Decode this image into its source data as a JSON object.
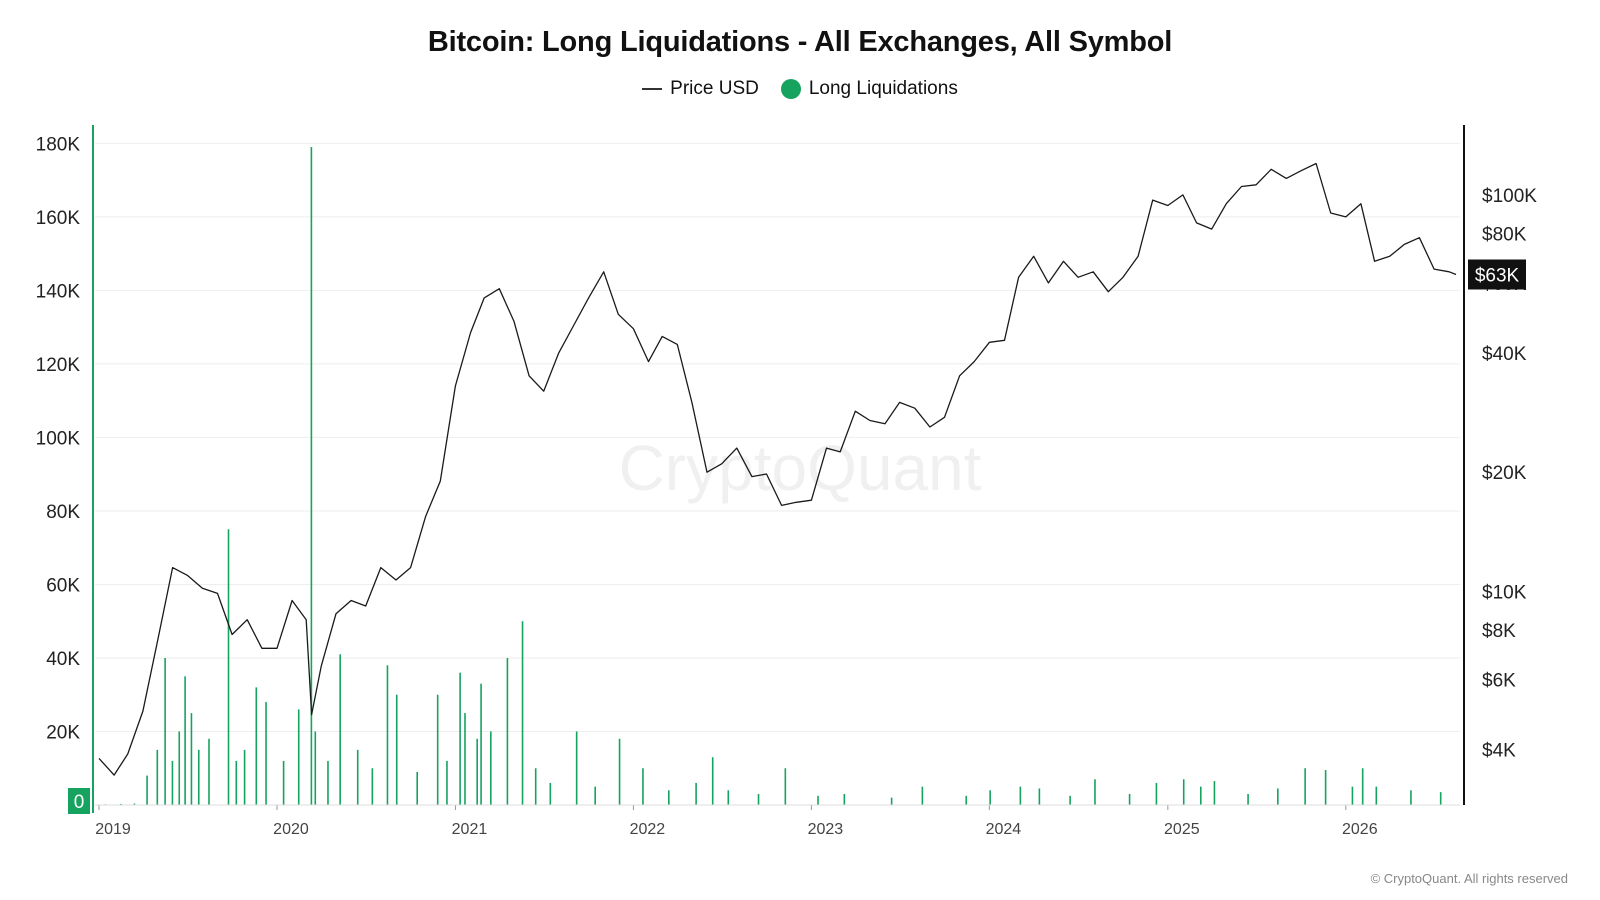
{
  "chart_data": {
    "type": "line",
    "title": "Bitcoin: Long Liquidations - All Exchanges, All Symbol",
    "watermark": "CryptoQuant",
    "copyright": "© CryptoQuant. All rights reserved",
    "legend": {
      "placement": "top-center",
      "items": [
        {
          "label": "Price USD",
          "marker": "line",
          "color": "#333333"
        },
        {
          "label": "Long Liquidations",
          "marker": "dot",
          "color": "#16A35F"
        }
      ]
    },
    "x_axis": {
      "ticks": [
        "2019",
        "2020",
        "2021",
        "2022",
        "2023",
        "2024",
        "2025",
        "2026"
      ],
      "range": [
        "2019-01-01",
        "2026-08-15"
      ]
    },
    "left_axis": {
      "range": [
        0,
        185000
      ],
      "ticks": [
        {
          "value": 0,
          "label": "0"
        },
        {
          "value": 20000,
          "label": "20K"
        },
        {
          "value": 40000,
          "label": "40K"
        },
        {
          "value": 60000,
          "label": "60K"
        },
        {
          "value": 80000,
          "label": "80K"
        },
        {
          "value": 100000,
          "label": "100K"
        },
        {
          "value": 120000,
          "label": "120K"
        },
        {
          "value": 140000,
          "label": "140K"
        },
        {
          "value": 160000,
          "label": "160K"
        },
        {
          "value": 180000,
          "label": "180K"
        }
      ]
    },
    "right_axis": {
      "scale": "log",
      "range": [
        2900,
        150000
      ],
      "ticks": [
        {
          "value": 4000,
          "label": "$4K"
        },
        {
          "value": 6000,
          "label": "$6K"
        },
        {
          "value": 8000,
          "label": "$8K"
        },
        {
          "value": 10000,
          "label": "$10K"
        },
        {
          "value": 20000,
          "label": "$20K"
        },
        {
          "value": 40000,
          "label": "$40K"
        },
        {
          "value": 60000,
          "label": "$60K"
        },
        {
          "value": 80000,
          "label": "$80K"
        },
        {
          "value": 100000,
          "label": "$100K"
        }
      ],
      "current_value": 63000,
      "current_label": "$63K"
    },
    "series": [
      {
        "name": "Price USD",
        "type": "line",
        "axis": "right",
        "color": "#1a1a1a",
        "points": [
          [
            "2019-01-01",
            3800
          ],
          [
            "2019-02-01",
            3450
          ],
          [
            "2019-03-01",
            3900
          ],
          [
            "2019-04-01",
            5000
          ],
          [
            "2019-05-01",
            7500
          ],
          [
            "2019-06-01",
            11500
          ],
          [
            "2019-07-01",
            11000
          ],
          [
            "2019-08-01",
            10200
          ],
          [
            "2019-09-01",
            9900
          ],
          [
            "2019-10-01",
            7800
          ],
          [
            "2019-11-01",
            8500
          ],
          [
            "2019-12-01",
            7200
          ],
          [
            "2020-01-01",
            7200
          ],
          [
            "2020-02-01",
            9500
          ],
          [
            "2020-03-01",
            8500
          ],
          [
            "2020-03-12",
            4900
          ],
          [
            "2020-04-01",
            6500
          ],
          [
            "2020-05-01",
            8800
          ],
          [
            "2020-06-01",
            9500
          ],
          [
            "2020-07-01",
            9200
          ],
          [
            "2020-08-01",
            11500
          ],
          [
            "2020-09-01",
            10700
          ],
          [
            "2020-10-01",
            11500
          ],
          [
            "2020-11-01",
            15500
          ],
          [
            "2020-12-01",
            19000
          ],
          [
            "2021-01-01",
            33000
          ],
          [
            "2021-02-01",
            45000
          ],
          [
            "2021-03-01",
            55000
          ],
          [
            "2021-04-01",
            58000
          ],
          [
            "2021-05-01",
            48000
          ],
          [
            "2021-06-01",
            35000
          ],
          [
            "2021-07-01",
            32000
          ],
          [
            "2021-08-01",
            40000
          ],
          [
            "2021-09-01",
            47000
          ],
          [
            "2021-10-01",
            55000
          ],
          [
            "2021-11-01",
            64000
          ],
          [
            "2021-12-01",
            50000
          ],
          [
            "2022-01-01",
            46000
          ],
          [
            "2022-02-01",
            38000
          ],
          [
            "2022-03-01",
            44000
          ],
          [
            "2022-04-01",
            42000
          ],
          [
            "2022-05-01",
            30000
          ],
          [
            "2022-06-01",
            20000
          ],
          [
            "2022-07-01",
            21000
          ],
          [
            "2022-08-01",
            23000
          ],
          [
            "2022-09-01",
            19500
          ],
          [
            "2022-10-01",
            19800
          ],
          [
            "2022-11-01",
            16500
          ],
          [
            "2022-12-01",
            16800
          ],
          [
            "2023-01-01",
            17000
          ],
          [
            "2023-02-01",
            23000
          ],
          [
            "2023-03-01",
            22500
          ],
          [
            "2023-04-01",
            28500
          ],
          [
            "2023-05-01",
            27000
          ],
          [
            "2023-06-01",
            26500
          ],
          [
            "2023-07-01",
            30000
          ],
          [
            "2023-08-01",
            29000
          ],
          [
            "2023-09-01",
            26000
          ],
          [
            "2023-10-01",
            27500
          ],
          [
            "2023-11-01",
            35000
          ],
          [
            "2023-12-01",
            38000
          ],
          [
            "2024-01-01",
            42500
          ],
          [
            "2024-02-01",
            43000
          ],
          [
            "2024-03-01",
            62000
          ],
          [
            "2024-04-01",
            70000
          ],
          [
            "2024-05-01",
            60000
          ],
          [
            "2024-06-01",
            68000
          ],
          [
            "2024-07-01",
            62000
          ],
          [
            "2024-08-01",
            64000
          ],
          [
            "2024-09-01",
            57000
          ],
          [
            "2024-10-01",
            62000
          ],
          [
            "2024-11-01",
            70000
          ],
          [
            "2024-12-01",
            97000
          ],
          [
            "2025-01-01",
            94000
          ],
          [
            "2025-02-01",
            100000
          ],
          [
            "2025-03-01",
            85000
          ],
          [
            "2025-04-01",
            82000
          ],
          [
            "2025-05-01",
            95000
          ],
          [
            "2025-06-01",
            105000
          ],
          [
            "2025-07-01",
            106000
          ],
          [
            "2025-08-01",
            116000
          ],
          [
            "2025-09-01",
            110000
          ],
          [
            "2025-10-01",
            115000
          ],
          [
            "2025-11-01",
            120000
          ],
          [
            "2025-12-01",
            90000
          ],
          [
            "2026-01-01",
            88000
          ],
          [
            "2026-02-01",
            95000
          ],
          [
            "2026-03-01",
            68000
          ],
          [
            "2026-04-01",
            70000
          ],
          [
            "2026-05-01",
            75000
          ],
          [
            "2026-06-01",
            78000
          ],
          [
            "2026-07-01",
            65000
          ],
          [
            "2026-08-01",
            64000
          ],
          [
            "2026-08-15",
            63000
          ]
        ]
      },
      {
        "name": "Long Liquidations",
        "type": "bar",
        "axis": "left",
        "color": "#16A35F",
        "points": [
          [
            "2019-01-15",
            200
          ],
          [
            "2019-02-15",
            300
          ],
          [
            "2019-03-15",
            400
          ],
          [
            "2019-04-10",
            8000
          ],
          [
            "2019-05-01",
            15000
          ],
          [
            "2019-05-17",
            40000
          ],
          [
            "2019-06-01",
            12000
          ],
          [
            "2019-06-15",
            20000
          ],
          [
            "2019-06-27",
            35000
          ],
          [
            "2019-07-10",
            25000
          ],
          [
            "2019-07-25",
            15000
          ],
          [
            "2019-08-15",
            18000
          ],
          [
            "2019-09-24",
            75000
          ],
          [
            "2019-10-10",
            12000
          ],
          [
            "2019-10-27",
            15000
          ],
          [
            "2019-11-20",
            32000
          ],
          [
            "2019-12-10",
            28000
          ],
          [
            "2020-01-15",
            12000
          ],
          [
            "2020-02-15",
            26000
          ],
          [
            "2020-03-12",
            179000
          ],
          [
            "2020-03-20",
            20000
          ],
          [
            "2020-04-15",
            12000
          ],
          [
            "2020-05-10",
            41000
          ],
          [
            "2020-06-15",
            15000
          ],
          [
            "2020-07-15",
            10000
          ],
          [
            "2020-08-15",
            38000
          ],
          [
            "2020-09-03",
            30000
          ],
          [
            "2020-10-15",
            9000
          ],
          [
            "2020-11-26",
            30000
          ],
          [
            "2020-12-15",
            12000
          ],
          [
            "2021-01-11",
            36000
          ],
          [
            "2021-01-21",
            25000
          ],
          [
            "2021-02-15",
            18000
          ],
          [
            "2021-02-23",
            33000
          ],
          [
            "2021-03-15",
            20000
          ],
          [
            "2021-04-18",
            40000
          ],
          [
            "2021-05-19",
            50000
          ],
          [
            "2021-06-15",
            10000
          ],
          [
            "2021-07-15",
            6000
          ],
          [
            "2021-09-07",
            20000
          ],
          [
            "2021-10-15",
            5000
          ],
          [
            "2021-12-04",
            18000
          ],
          [
            "2022-01-21",
            10000
          ],
          [
            "2022-03-15",
            4000
          ],
          [
            "2022-05-10",
            6000
          ],
          [
            "2022-06-13",
            13000
          ],
          [
            "2022-07-15",
            4000
          ],
          [
            "2022-09-15",
            3000
          ],
          [
            "2022-11-09",
            10000
          ],
          [
            "2023-01-15",
            2500
          ],
          [
            "2023-03-10",
            3000
          ],
          [
            "2023-06-15",
            2000
          ],
          [
            "2023-08-17",
            5000
          ],
          [
            "2023-11-15",
            2500
          ],
          [
            "2024-01-03",
            4000
          ],
          [
            "2024-03-05",
            5000
          ],
          [
            "2024-04-13",
            4500
          ],
          [
            "2024-06-15",
            2500
          ],
          [
            "2024-08-05",
            7000
          ],
          [
            "2024-10-15",
            3000
          ],
          [
            "2024-12-09",
            6000
          ],
          [
            "2025-02-03",
            7000
          ],
          [
            "2025-03-10",
            5000
          ],
          [
            "2025-04-07",
            6500
          ],
          [
            "2025-06-15",
            3000
          ],
          [
            "2025-08-15",
            4500
          ],
          [
            "2025-10-10",
            10000
          ],
          [
            "2025-11-21",
            9500
          ],
          [
            "2026-01-15",
            5000
          ],
          [
            "2026-02-05",
            10000
          ],
          [
            "2026-03-05",
            5000
          ],
          [
            "2026-05-15",
            4000
          ],
          [
            "2026-07-15",
            3500
          ]
        ]
      }
    ]
  }
}
